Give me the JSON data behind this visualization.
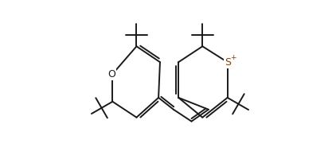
{
  "background_color": "#ffffff",
  "line_color": "#1a1a1a",
  "label_color_O": "#1a1a1a",
  "label_color_S": "#8B4000",
  "line_width": 1.4,
  "figsize": [
    4.22,
    2.0
  ],
  "dpi": 100,
  "xlim": [
    0,
    10
  ],
  "ylim": [
    -2.5,
    5.0
  ]
}
